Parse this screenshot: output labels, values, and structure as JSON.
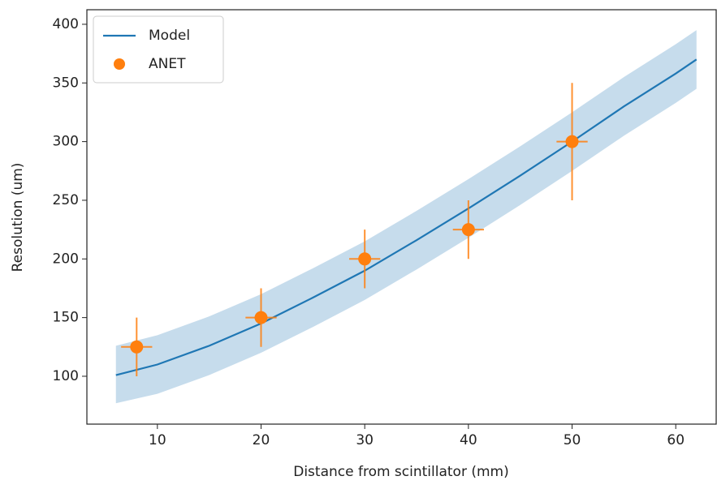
{
  "chart_data": {
    "type": "line_errorbar",
    "xlabel": "Distance from scintillator (mm)",
    "ylabel": "Resolution (um)",
    "xlim": [
      3.2,
      63.9
    ],
    "ylim": [
      59.2,
      412.4
    ],
    "xticks": [
      10,
      20,
      30,
      40,
      50,
      60
    ],
    "yticks": [
      100,
      150,
      200,
      250,
      300,
      350,
      400
    ],
    "legend": "upper left",
    "series": [
      {
        "name": "Model",
        "color": "#1f77b4",
        "kind": "line",
        "x": [
          6,
          10,
          15,
          20,
          25,
          30,
          35,
          40,
          45,
          50,
          55,
          60,
          62
        ],
        "values": [
          101,
          110,
          126,
          145,
          167,
          190,
          216,
          243,
          271,
          300,
          330,
          358,
          370
        ],
        "band_color": "#c6dcec",
        "lower": [
          77,
          85,
          101,
          120,
          142,
          165,
          191,
          218,
          246,
          275,
          305,
          333,
          345
        ],
        "upper": [
          126,
          135,
          151,
          170,
          192,
          215,
          241,
          268,
          296,
          325,
          355,
          383,
          395
        ]
      },
      {
        "name": "ANET",
        "color": "#ff7f0e",
        "kind": "scatter",
        "x": [
          8,
          20,
          30,
          40,
          50
        ],
        "values": [
          125,
          150,
          200,
          225,
          300
        ],
        "yerr": [
          25,
          25,
          25,
          25,
          50
        ],
        "xerr": [
          1.5,
          1.5,
          1.5,
          1.5,
          1.5
        ]
      }
    ]
  }
}
